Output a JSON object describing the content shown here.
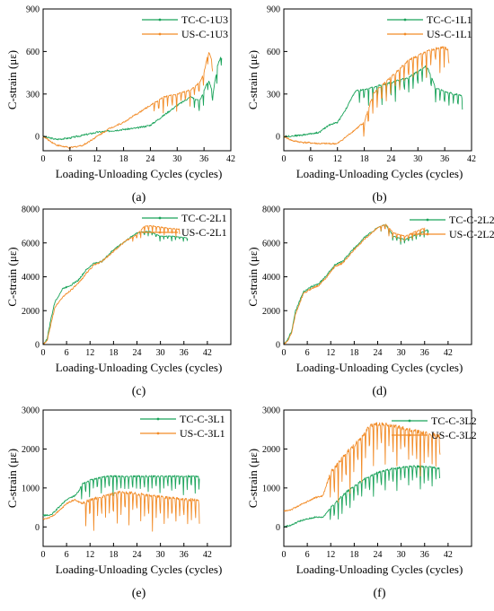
{
  "colors": {
    "tc": "#1aa35a",
    "us": "#f28c28"
  },
  "chart_data": [
    {
      "type": "line",
      "caption": "(a)",
      "xlabel": "Loading-Unloading Cycles (cycles)",
      "ylabel": "C-strain (με)",
      "xlim": [
        0,
        42
      ],
      "ylim": [
        -100,
        900
      ],
      "xticks": [
        0,
        6,
        12,
        18,
        24,
        30,
        36,
        42
      ],
      "yticks": [
        0,
        300,
        600,
        900
      ],
      "legend_position": "top-right",
      "series": [
        {
          "name": "TC-C-1U3",
          "style": "green",
          "x": [
            0,
            3,
            6,
            9,
            12,
            15,
            18,
            21,
            24,
            27,
            30,
            33,
            35,
            37,
            38,
            39,
            40
          ],
          "y": [
            0,
            -20,
            -10,
            10,
            30,
            40,
            50,
            60,
            80,
            150,
            220,
            280,
            250,
            400,
            300,
            500,
            580
          ],
          "osc": 120,
          "osc_start": 33
        },
        {
          "name": "US-C-1U3",
          "style": "orange",
          "x": [
            0,
            3,
            6,
            9,
            12,
            15,
            18,
            21,
            24,
            27,
            30,
            33,
            35,
            36,
            37,
            38
          ],
          "y": [
            0,
            -60,
            -80,
            -60,
            0,
            60,
            100,
            160,
            220,
            280,
            300,
            330,
            380,
            450,
            600,
            520
          ],
          "osc": 120,
          "osc_start": 24
        }
      ]
    },
    {
      "type": "line",
      "caption": "(b)",
      "xlabel": "Loading-Unloading Cycles (cycles)",
      "ylabel": "C-strain (με)",
      "xlim": [
        0,
        42
      ],
      "ylim": [
        -100,
        900
      ],
      "xticks": [
        0,
        6,
        12,
        18,
        24,
        30,
        36,
        42
      ],
      "yticks": [
        0,
        300,
        600,
        900
      ],
      "legend_position": "top-right",
      "series": [
        {
          "name": "TC-C-1L1",
          "style": "green",
          "x": [
            0,
            4,
            8,
            10,
            12,
            14,
            16,
            20,
            24,
            28,
            32,
            34,
            36,
            38,
            40
          ],
          "y": [
            0,
            10,
            30,
            80,
            100,
            200,
            320,
            350,
            380,
            420,
            500,
            340,
            320,
            300,
            290
          ],
          "osc": 140,
          "osc_start": 16
        },
        {
          "name": "US-C-1L1",
          "style": "orange",
          "x": [
            0,
            2,
            4,
            8,
            12,
            14,
            16,
            18,
            20,
            24,
            28,
            32,
            34,
            36,
            37
          ],
          "y": [
            0,
            -30,
            -40,
            -50,
            -50,
            0,
            50,
            100,
            300,
            420,
            540,
            600,
            620,
            630,
            600
          ],
          "osc": 200,
          "osc_start": 17
        }
      ]
    },
    {
      "type": "line",
      "caption": "(c)",
      "xlabel": "Loading-Unloading Cycles (cycles)",
      "ylabel": "C-strain (με)",
      "xlim": [
        0,
        48
      ],
      "ylim": [
        0,
        8000
      ],
      "xticks": [
        0,
        6,
        12,
        18,
        24,
        30,
        36,
        42
      ],
      "yticks": [
        0,
        2000,
        4000,
        6000,
        8000
      ],
      "legend_position": "top-right",
      "series": [
        {
          "name": "TC-C-2L1",
          "style": "green",
          "x": [
            0,
            1,
            2,
            3,
            5,
            7,
            9,
            11,
            13,
            15,
            18,
            21,
            24,
            27,
            30,
            33,
            37
          ],
          "y": [
            0,
            300,
            1500,
            2500,
            3300,
            3500,
            3800,
            4400,
            4800,
            4900,
            5600,
            6100,
            6600,
            6700,
            6400,
            6400,
            6300
          ],
          "osc": 300,
          "osc_start": 24
        },
        {
          "name": "US-C-2L1",
          "style": "orange",
          "x": [
            0,
            1,
            2,
            3,
            5,
            7,
            9,
            11,
            13,
            15,
            18,
            21,
            24,
            26,
            28,
            31,
            35
          ],
          "y": [
            0,
            200,
            1200,
            2200,
            2800,
            3200,
            3600,
            4200,
            4700,
            4900,
            5500,
            6100,
            6500,
            7000,
            7000,
            6900,
            6800
          ],
          "osc": 500,
          "osc_start": 22
        }
      ]
    },
    {
      "type": "line",
      "caption": "(d)",
      "xlabel": "Loading-Unloading Cycles (cycles)",
      "ylabel": "C-strain (με)",
      "xlim": [
        0,
        48
      ],
      "ylim": [
        0,
        8000
      ],
      "xticks": [
        0,
        6,
        12,
        18,
        24,
        30,
        36,
        42
      ],
      "yticks": [
        0,
        2000,
        4000,
        6000,
        8000
      ],
      "legend_position": "top-right",
      "series": [
        {
          "name": "TC-C-2L2",
          "style": "green",
          "x": [
            0,
            1,
            2,
            3,
            5,
            7,
            9,
            11,
            13,
            15,
            18,
            21,
            24,
            26,
            28,
            31,
            34,
            37
          ],
          "y": [
            0,
            300,
            800,
            2000,
            3100,
            3400,
            3600,
            4100,
            4700,
            4900,
            5700,
            6400,
            6900,
            7100,
            6400,
            6200,
            6500,
            6800
          ],
          "osc": 400,
          "osc_start": 24
        },
        {
          "name": "US-C-2L2",
          "style": "orange",
          "x": [
            0,
            1,
            2,
            3,
            5,
            7,
            9,
            11,
            13,
            15,
            18,
            21,
            24,
            26,
            28,
            31,
            34,
            36
          ],
          "y": [
            0,
            200,
            700,
            1800,
            3000,
            3300,
            3500,
            4000,
            4600,
            4800,
            5600,
            6300,
            6900,
            7100,
            6600,
            6400,
            6700,
            6900
          ],
          "osc": 500,
          "osc_start": 24
        }
      ]
    },
    {
      "type": "line",
      "caption": "(e)",
      "xlabel": "Loading-Unloading Cycles (cycles)",
      "ylabel": "C-strain (με)",
      "xlim": [
        0,
        48
      ],
      "ylim": [
        -500,
        3000
      ],
      "xticks": [
        0,
        6,
        12,
        18,
        24,
        30,
        36,
        42
      ],
      "yticks": [
        0,
        1000,
        2000,
        3000
      ],
      "legend_position": "top-right",
      "series": [
        {
          "name": "TC-C-3L1",
          "style": "green",
          "x": [
            0,
            2,
            4,
            6,
            8,
            9,
            10,
            12,
            16,
            20,
            24,
            28,
            32,
            36,
            40
          ],
          "y": [
            300,
            300,
            500,
            700,
            800,
            900,
            1100,
            1200,
            1300,
            1300,
            1300,
            1300,
            1300,
            1300,
            1300
          ],
          "osc": 500,
          "osc_start": 9
        },
        {
          "name": "US-C-3L1",
          "style": "orange",
          "x": [
            0,
            2,
            4,
            6,
            8,
            10,
            12,
            16,
            20,
            24,
            28,
            32,
            36,
            40
          ],
          "y": [
            200,
            250,
            400,
            600,
            700,
            600,
            700,
            800,
            900,
            850,
            800,
            750,
            700,
            700
          ],
          "osc": 900,
          "osc_start": 10
        }
      ]
    },
    {
      "type": "line",
      "caption": "(f)",
      "xlabel": "Loading-Unloading Cycles (cycles)",
      "ylabel": "C-strain (με)",
      "xlim": [
        0,
        48
      ],
      "ylim": [
        -500,
        3000
      ],
      "xticks": [
        0,
        6,
        12,
        18,
        24,
        30,
        36,
        42
      ],
      "yticks": [
        0,
        1000,
        2000,
        3000
      ],
      "legend_position": "top-right",
      "series": [
        {
          "name": "TC-C-3L2",
          "style": "green",
          "x": [
            0,
            2,
            4,
            6,
            8,
            10,
            12,
            16,
            20,
            24,
            28,
            32,
            36,
            40
          ],
          "y": [
            0,
            50,
            150,
            200,
            250,
            250,
            500,
            900,
            1200,
            1400,
            1500,
            1550,
            1550,
            1500
          ],
          "osc": 600,
          "osc_start": 11
        },
        {
          "name": "US-C-3L2",
          "style": "orange",
          "x": [
            0,
            2,
            4,
            6,
            8,
            10,
            12,
            16,
            20,
            22,
            24,
            28,
            32,
            36,
            40
          ],
          "y": [
            400,
            450,
            550,
            650,
            750,
            800,
            1400,
            1900,
            2300,
            2600,
            2650,
            2600,
            2500,
            2400,
            2350
          ],
          "osc": 1200,
          "osc_start": 11
        }
      ]
    }
  ]
}
